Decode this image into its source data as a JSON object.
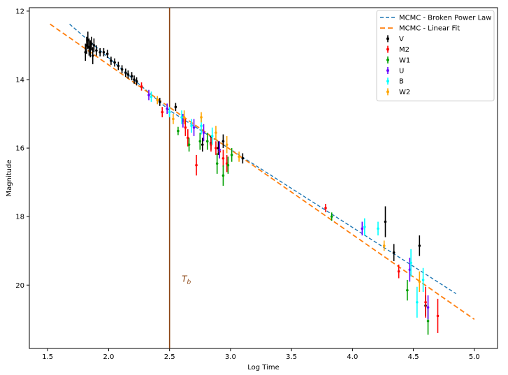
{
  "chart_data": {
    "type": "scatter",
    "title": "",
    "xlabel": "Log Time",
    "ylabel": "Magnitude",
    "xlim": [
      1.35,
      5.19
    ],
    "ylim": [
      21.85,
      11.9
    ],
    "y_inverted": true,
    "grid": false,
    "legend_position": "top-right",
    "x_ticks": [
      1.5,
      2.0,
      2.5,
      3.0,
      3.5,
      4.0,
      4.5,
      5.0
    ],
    "x_tick_labels": [
      "1.5",
      "2.0",
      "2.5",
      "3.0",
      "3.5",
      "4.0",
      "4.5",
      "5.0"
    ],
    "y_ticks": [
      12,
      14,
      16,
      18,
      20
    ],
    "y_tick_labels": [
      "12",
      "14",
      "16",
      "18",
      "20"
    ],
    "vline": {
      "x": 2.5,
      "color": "#8B4513",
      "label": "T",
      "label_sub": "b",
      "label_x": 2.6,
      "label_y": 19.9
    },
    "lines": [
      {
        "name": "MCMC - Broken Power Law",
        "style": "dashed",
        "color": "#1f77b4",
        "points": [
          [
            1.68,
            12.38
          ],
          [
            2.5,
            14.9
          ],
          [
            4.85,
            20.25
          ]
        ]
      },
      {
        "name": "MCMC - Linear Fit",
        "style": "dashed",
        "color": "#ff7f0e",
        "points": [
          [
            1.52,
            12.38
          ],
          [
            5.0,
            21.0
          ]
        ]
      }
    ],
    "series": [
      {
        "name": "V",
        "color": "#000000",
        "points": [
          [
            1.81,
            13.2,
            0.25
          ],
          [
            1.82,
            13.0,
            0.25
          ],
          [
            1.83,
            12.85,
            0.25
          ],
          [
            1.84,
            13.05,
            0.25
          ],
          [
            1.85,
            13.1,
            0.25
          ],
          [
            1.86,
            12.95,
            0.2
          ],
          [
            1.87,
            13.3,
            0.25
          ],
          [
            1.88,
            13.0,
            0.2
          ],
          [
            1.9,
            13.15,
            0.15
          ],
          [
            1.93,
            13.2,
            0.12
          ],
          [
            1.96,
            13.2,
            0.12
          ],
          [
            1.99,
            13.25,
            0.12
          ],
          [
            2.02,
            13.45,
            0.12
          ],
          [
            2.05,
            13.5,
            0.12
          ],
          [
            2.08,
            13.6,
            0.12
          ],
          [
            2.11,
            13.7,
            0.12
          ],
          [
            2.14,
            13.8,
            0.12
          ],
          [
            2.16,
            13.85,
            0.12
          ],
          [
            2.19,
            13.9,
            0.12
          ],
          [
            2.21,
            14.0,
            0.12
          ],
          [
            2.23,
            14.05,
            0.12
          ],
          [
            2.42,
            14.65,
            0.12
          ],
          [
            2.55,
            14.8,
            0.12
          ],
          [
            2.77,
            15.9,
            0.2
          ],
          [
            2.84,
            15.85,
            0.2
          ],
          [
            2.9,
            16.0,
            0.2
          ],
          [
            2.94,
            15.8,
            0.2
          ],
          [
            3.1,
            16.3,
            0.15
          ],
          [
            4.27,
            18.15,
            0.45
          ],
          [
            4.34,
            19.05,
            0.25
          ],
          [
            4.55,
            18.85,
            0.3
          ],
          [
            4.6,
            20.6,
            0.3
          ]
        ]
      },
      {
        "name": "M2",
        "color": "#ff0000",
        "points": [
          [
            2.27,
            14.2,
            0.12
          ],
          [
            2.44,
            14.95,
            0.15
          ],
          [
            2.63,
            15.4,
            0.25
          ],
          [
            2.65,
            15.7,
            0.25
          ],
          [
            2.72,
            16.5,
            0.3
          ],
          [
            2.84,
            15.9,
            0.2
          ],
          [
            2.88,
            16.0,
            0.2
          ],
          [
            2.91,
            16.1,
            0.2
          ],
          [
            2.94,
            16.3,
            0.25
          ],
          [
            2.97,
            16.45,
            0.25
          ],
          [
            3.78,
            17.75,
            0.12
          ],
          [
            4.38,
            19.6,
            0.2
          ],
          [
            4.6,
            20.5,
            0.45
          ],
          [
            4.7,
            20.9,
            0.5
          ]
        ]
      },
      {
        "name": "W1",
        "color": "#00a000",
        "points": [
          [
            2.57,
            15.5,
            0.12
          ],
          [
            2.66,
            15.9,
            0.2
          ],
          [
            2.75,
            15.8,
            0.25
          ],
          [
            2.81,
            15.8,
            0.25
          ],
          [
            2.89,
            16.45,
            0.3
          ],
          [
            2.94,
            16.8,
            0.3
          ],
          [
            2.98,
            16.5,
            0.25
          ],
          [
            3.01,
            16.2,
            0.2
          ],
          [
            3.83,
            18.0,
            0.12
          ],
          [
            4.45,
            20.15,
            0.3
          ],
          [
            4.62,
            21.05,
            0.4
          ]
        ]
      },
      {
        "name": "U",
        "color": "#6600ff",
        "points": [
          [
            2.33,
            14.45,
            0.15
          ],
          [
            2.48,
            14.85,
            0.15
          ],
          [
            2.61,
            15.2,
            0.2
          ],
          [
            2.7,
            15.4,
            0.25
          ],
          [
            2.78,
            15.55,
            0.25
          ],
          [
            2.91,
            16.05,
            0.25
          ],
          [
            4.08,
            18.35,
            0.2
          ],
          [
            4.47,
            19.55,
            0.35
          ],
          [
            4.62,
            20.65,
            0.35
          ]
        ]
      },
      {
        "name": "B",
        "color": "#00ffff",
        "points": [
          [
            2.35,
            14.5,
            0.15
          ],
          [
            2.5,
            14.95,
            0.15
          ],
          [
            2.6,
            15.1,
            0.2
          ],
          [
            2.68,
            15.35,
            0.2
          ],
          [
            2.76,
            15.35,
            0.25
          ],
          [
            2.85,
            15.65,
            0.25
          ],
          [
            4.1,
            18.3,
            0.25
          ],
          [
            4.21,
            18.35,
            0.2
          ],
          [
            4.48,
            19.35,
            0.4
          ],
          [
            4.53,
            20.5,
            0.45
          ],
          [
            4.58,
            19.85,
            0.35
          ]
        ]
      },
      {
        "name": "W2",
        "color": "#ffa500",
        "points": [
          [
            2.4,
            14.6,
            0.12
          ],
          [
            2.53,
            15.15,
            0.15
          ],
          [
            2.62,
            15.1,
            0.2
          ],
          [
            2.76,
            15.1,
            0.15
          ],
          [
            2.88,
            15.55,
            0.2
          ],
          [
            2.97,
            15.9,
            0.25
          ],
          [
            3.07,
            16.25,
            0.15
          ],
          [
            4.26,
            18.85,
            0.15
          ],
          [
            4.55,
            19.9,
            0.3
          ]
        ]
      }
    ]
  }
}
